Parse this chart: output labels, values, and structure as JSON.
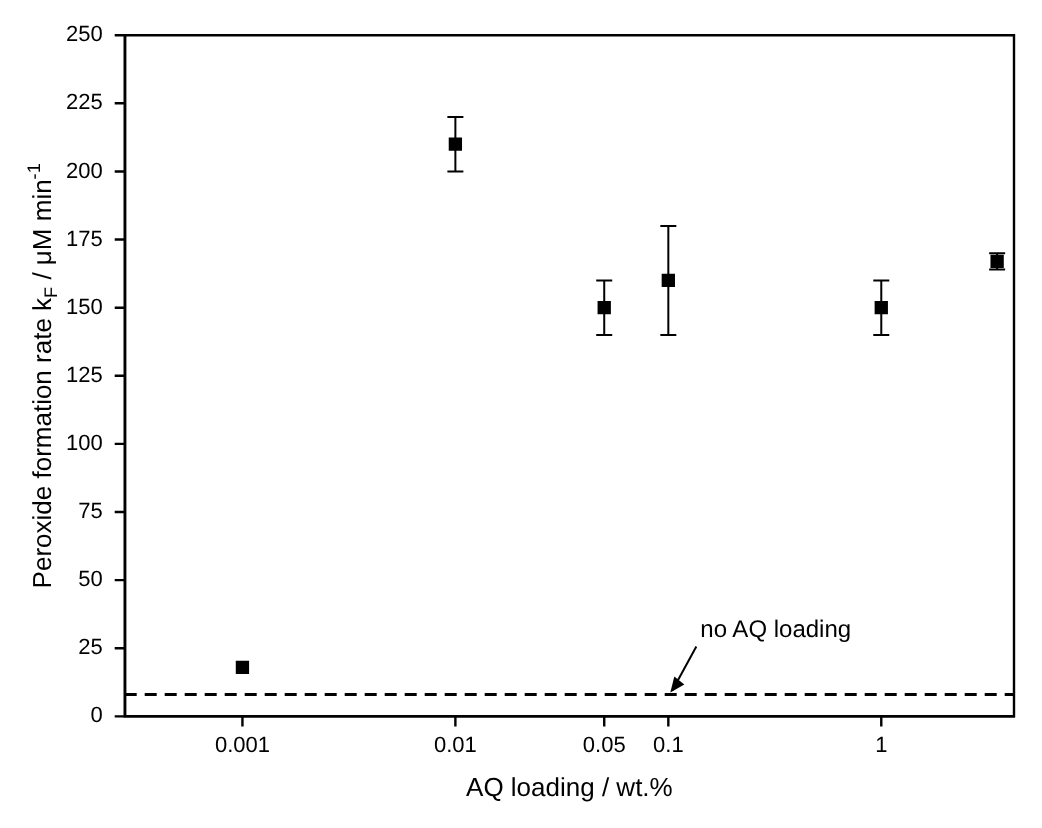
{
  "chart_data": {
    "type": "scatter",
    "xlabel": "AQ loading / wt.%",
    "ylabel": "Peroxide formation rate k$_{F}$ / μM min$^{-1}$",
    "log": "x",
    "x": [
      0.001,
      0.01,
      0.05,
      0.1,
      1,
      3.5
    ],
    "values": [
      18,
      210,
      150,
      160,
      150,
      167
    ],
    "errors": [
      null,
      10,
      10,
      20,
      10,
      3
    ],
    "color": "#000000",
    "marker": "square",
    "xlim": [
      0.00028,
      4.2
    ],
    "xticks": [
      0.001,
      0.01,
      0.05,
      0.1,
      1
    ],
    "ylim": [
      0,
      250
    ],
    "yticks": [
      0,
      25,
      50,
      75,
      100,
      125,
      150,
      175,
      200,
      225,
      250
    ],
    "ref_lines": [
      {
        "axis": "y",
        "value": 8,
        "color": "#000000",
        "line_style": "dashed"
      }
    ],
    "annotations": [
      {
        "text": "no AQ loading",
        "x": 0.1,
        "y": 8
      }
    ],
    "grid": false,
    "legend": false
  }
}
